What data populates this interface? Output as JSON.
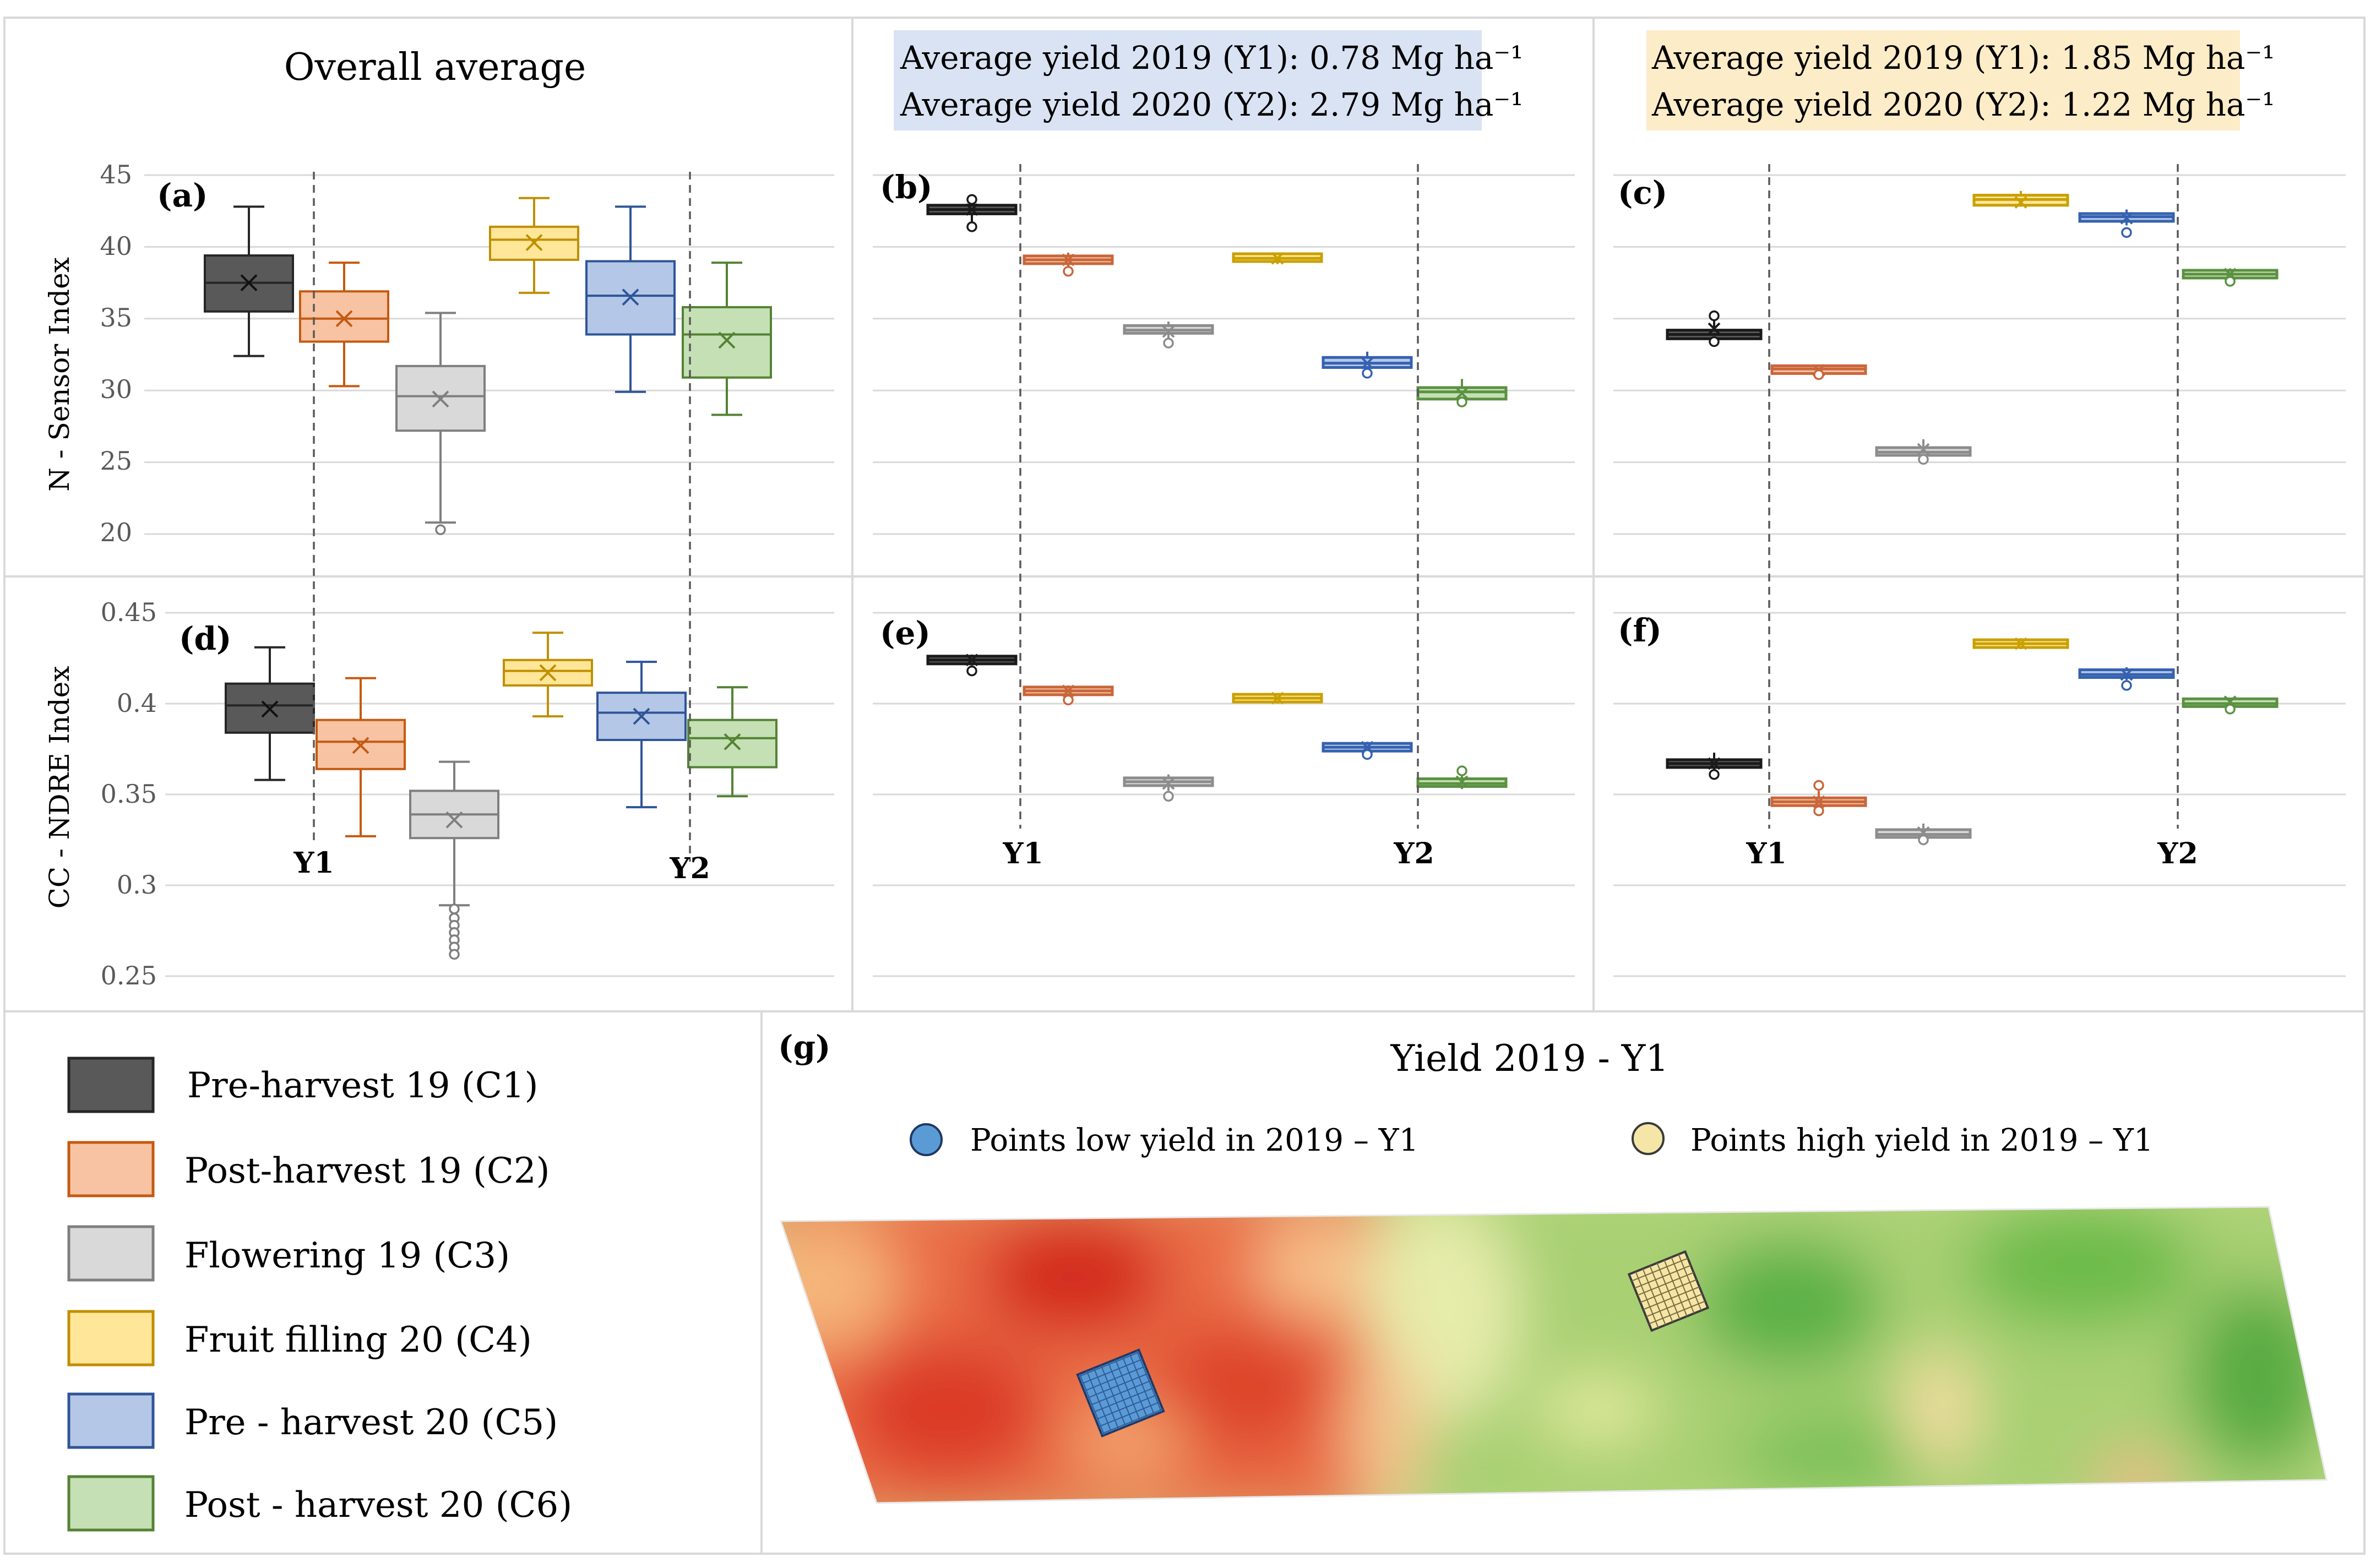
{
  "colors": {
    "C1": {
      "fill": "#595959",
      "stroke": "#262626",
      "dark": "#1a1a1a"
    },
    "C2": {
      "fill": "#f7c3a3",
      "stroke": "#c55a11",
      "dark": "#c8663a"
    },
    "C3": {
      "fill": "#d9d9d9",
      "stroke": "#7f7f7f",
      "dark": "#8c8c8c"
    },
    "C4": {
      "fill": "#ffe699",
      "stroke": "#bf8f00",
      "dark": "#c9a000"
    },
    "C5": {
      "fill": "#b4c7e7",
      "stroke": "#2f5597",
      "dark": "#3561b0"
    },
    "C6": {
      "fill": "#c5e0b4",
      "stroke": "#548235",
      "dark": "#5b9142"
    },
    "yield_box_low": "#dae3f3",
    "yield_box_high": "#fdecc8"
  },
  "top_row": {
    "overall_title": "Overall average",
    "yield_box_b": {
      "line1": "Average yield 2019 (Y1): 0.78 Mg ha⁻¹",
      "line2": "Average yield 2020 (Y2): 2.79 Mg ha⁻¹"
    },
    "yield_box_c": {
      "line1": "Average yield 2019 (Y1): 1.85 Mg ha⁻¹",
      "line2": "Average yield 2020 (Y2): 1.22 Mg ha⁻¹"
    }
  },
  "divider_labels": {
    "y1": "Y1",
    "y2": "Y2"
  },
  "chart_data": [
    {
      "panel": "(a)",
      "type": "box",
      "ylabel": "N - Sensor Index",
      "ylim": [
        20,
        45
      ],
      "yticks": [
        "45",
        "40",
        "35",
        "30",
        "25",
        "20"
      ],
      "ytick_values": [
        45,
        40,
        35,
        30,
        25,
        20
      ],
      "boxes": [
        {
          "cat": "C1",
          "min": 32.4,
          "q1": 35.5,
          "median": 37.5,
          "q3": 39.4,
          "max": 42.8,
          "mean": 37.5,
          "outliers": []
        },
        {
          "cat": "C2",
          "min": 30.3,
          "q1": 33.4,
          "median": 35.0,
          "q3": 36.9,
          "max": 38.9,
          "mean": 35.0,
          "outliers": []
        },
        {
          "cat": "C3",
          "min": 20.8,
          "q1": 27.2,
          "median": 29.6,
          "q3": 31.7,
          "max": 35.4,
          "mean": 29.4,
          "outliers": [
            20.3
          ]
        },
        {
          "cat": "C4",
          "min": 36.8,
          "q1": 39.1,
          "median": 40.5,
          "q3": 41.4,
          "max": 43.4,
          "mean": 40.3,
          "outliers": []
        },
        {
          "cat": "C5",
          "min": 29.9,
          "q1": 33.9,
          "median": 36.6,
          "q3": 39.0,
          "max": 42.8,
          "mean": 36.5,
          "outliers": []
        },
        {
          "cat": "C6",
          "min": 28.3,
          "q1": 30.9,
          "median": 33.9,
          "q3": 35.8,
          "max": 38.9,
          "mean": 33.5,
          "outliers": []
        }
      ]
    },
    {
      "panel": "(b)",
      "type": "box",
      "ylim": [
        20,
        45
      ],
      "boxes": [
        {
          "cat": "C1",
          "min": 41.5,
          "q1": 42.3,
          "median": 42.6,
          "q3": 42.9,
          "max": 43.5,
          "mean": 42.6,
          "outliers": [
            41.4,
            43.3
          ]
        },
        {
          "cat": "C2",
          "min": 38.5,
          "q1": 38.9,
          "median": 39.1,
          "q3": 39.3,
          "max": 39.6,
          "mean": 39.1,
          "outliers": [
            38.3
          ]
        },
        {
          "cat": "C3",
          "min": 33.6,
          "q1": 34.0,
          "median": 34.2,
          "q3": 34.5,
          "max": 34.8,
          "mean": 34.1,
          "outliers": [
            33.3
          ]
        },
        {
          "cat": "C4",
          "min": 38.8,
          "q1": 39.1,
          "median": 39.2,
          "q3": 39.4,
          "max": 39.6,
          "mean": 39.2,
          "outliers": []
        },
        {
          "cat": "C5",
          "min": 31.3,
          "q1": 31.6,
          "median": 31.9,
          "q3": 32.3,
          "max": 32.7,
          "mean": 31.9,
          "outliers": [
            31.2
          ]
        },
        {
          "cat": "C6",
          "min": 29.3,
          "q1": 29.4,
          "median": 29.9,
          "q3": 30.2,
          "max": 30.8,
          "mean": 29.8,
          "outliers": [
            29.2
          ]
        }
      ]
    },
    {
      "panel": "(c)",
      "type": "box",
      "ylim": [
        20,
        45
      ],
      "boxes": [
        {
          "cat": "C1",
          "min": 33.5,
          "q1": 33.6,
          "median": 33.9,
          "q3": 34.2,
          "max": 35.0,
          "mean": 34.3,
          "outliers": [
            33.4,
            35.2
          ]
        },
        {
          "cat": "C2",
          "min": 31.2,
          "q1": 31.3,
          "median": 31.5,
          "q3": 31.6,
          "max": 31.8,
          "mean": 31.4,
          "outliers": [
            31.1
          ]
        },
        {
          "cat": "C3",
          "min": 25.3,
          "q1": 25.5,
          "median": 25.7,
          "q3": 26.0,
          "max": 26.6,
          "mean": 25.9,
          "outliers": [
            25.2
          ]
        },
        {
          "cat": "C4",
          "min": 42.8,
          "q1": 42.9,
          "median": 43.3,
          "q3": 43.6,
          "max": 43.9,
          "mean": 43.1,
          "outliers": []
        },
        {
          "cat": "C5",
          "min": 41.5,
          "q1": 41.8,
          "median": 42.1,
          "q3": 42.3,
          "max": 42.6,
          "mean": 42.0,
          "outliers": [
            41.0
          ]
        },
        {
          "cat": "C6",
          "min": 37.8,
          "q1": 37.9,
          "median": 38.1,
          "q3": 38.3,
          "max": 38.5,
          "mean": 38.1,
          "outliers": [
            37.6
          ]
        }
      ]
    },
    {
      "panel": "(d)",
      "type": "box",
      "ylabel": "CC - NDRE Index",
      "ylim": [
        0.25,
        0.45
      ],
      "yticks": [
        "0.45",
        "0.4",
        "0.35",
        "0.3",
        "0.25"
      ],
      "ytick_values": [
        0.45,
        0.4,
        0.35,
        0.3,
        0.25
      ],
      "boxes": [
        {
          "cat": "C1",
          "min": 0.358,
          "q1": 0.384,
          "median": 0.399,
          "q3": 0.411,
          "max": 0.431,
          "mean": 0.397,
          "outliers": []
        },
        {
          "cat": "C2",
          "min": 0.327,
          "q1": 0.364,
          "median": 0.379,
          "q3": 0.391,
          "max": 0.414,
          "mean": 0.377,
          "outliers": []
        },
        {
          "cat": "C3",
          "min": 0.289,
          "q1": 0.326,
          "median": 0.339,
          "q3": 0.352,
          "max": 0.368,
          "mean": 0.336,
          "outliers": [
            0.287,
            0.282,
            0.278,
            0.274,
            0.27,
            0.266,
            0.262
          ]
        },
        {
          "cat": "C4",
          "min": 0.393,
          "q1": 0.41,
          "median": 0.418,
          "q3": 0.424,
          "max": 0.439,
          "mean": 0.417,
          "outliers": []
        },
        {
          "cat": "C5",
          "min": 0.343,
          "q1": 0.38,
          "median": 0.395,
          "q3": 0.406,
          "max": 0.423,
          "mean": 0.393,
          "outliers": []
        },
        {
          "cat": "C6",
          "min": 0.349,
          "q1": 0.365,
          "median": 0.381,
          "q3": 0.391,
          "max": 0.409,
          "mean": 0.379,
          "outliers": []
        }
      ]
    },
    {
      "panel": "(e)",
      "type": "box",
      "ylim": [
        0.25,
        0.45
      ],
      "boxes": [
        {
          "cat": "C1",
          "min": 0.421,
          "q1": 0.423,
          "median": 0.424,
          "q3": 0.425,
          "max": 0.427,
          "mean": 0.424,
          "outliers": [
            0.418
          ]
        },
        {
          "cat": "C2",
          "min": 0.403,
          "q1": 0.406,
          "median": 0.407,
          "q3": 0.408,
          "max": 0.41,
          "mean": 0.407,
          "outliers": [
            0.402
          ]
        },
        {
          "cat": "C3",
          "min": 0.352,
          "q1": 0.356,
          "median": 0.357,
          "q3": 0.358,
          "max": 0.361,
          "mean": 0.356,
          "outliers": [
            0.349
          ]
        },
        {
          "cat": "C4",
          "min": 0.4,
          "q1": 0.402,
          "median": 0.403,
          "q3": 0.404,
          "max": 0.405,
          "mean": 0.403,
          "outliers": []
        },
        {
          "cat": "C5",
          "min": 0.373,
          "q1": 0.375,
          "median": 0.376,
          "q3": 0.377,
          "max": 0.379,
          "mean": 0.376,
          "outliers": [
            0.372
          ]
        },
        {
          "cat": "C6",
          "min": 0.353,
          "q1": 0.355,
          "median": 0.356,
          "q3": 0.358,
          "max": 0.361,
          "mean": 0.357,
          "outliers": [
            0.363
          ]
        }
      ]
    },
    {
      "panel": "(f)",
      "type": "box",
      "ylim": [
        0.25,
        0.45
      ],
      "boxes": [
        {
          "cat": "C1",
          "min": 0.362,
          "q1": 0.365,
          "median": 0.367,
          "q3": 0.369,
          "max": 0.373,
          "mean": 0.367,
          "outliers": [
            0.361
          ]
        },
        {
          "cat": "C2",
          "min": 0.342,
          "q1": 0.344,
          "median": 0.346,
          "q3": 0.348,
          "max": 0.352,
          "mean": 0.346,
          "outliers": [
            0.341,
            0.355
          ]
        },
        {
          "cat": "C3",
          "min": 0.326,
          "q1": 0.327,
          "median": 0.328,
          "q3": 0.33,
          "max": 0.334,
          "mean": 0.329,
          "outliers": [
            0.325
          ]
        },
        {
          "cat": "C4",
          "min": 0.43,
          "q1": 0.432,
          "median": 0.433,
          "q3": 0.434,
          "max": 0.436,
          "mean": 0.433,
          "outliers": []
        },
        {
          "cat": "C5",
          "min": 0.413,
          "q1": 0.415,
          "median": 0.416,
          "q3": 0.418,
          "max": 0.42,
          "mean": 0.416,
          "outliers": [
            0.41
          ]
        },
        {
          "cat": "C6",
          "min": 0.398,
          "q1": 0.399,
          "median": 0.4,
          "q3": 0.402,
          "max": 0.403,
          "mean": 0.401,
          "outliers": [
            0.397
          ]
        }
      ]
    }
  ],
  "legend": [
    {
      "cat": "C1",
      "label": "Pre-harvest 19 (C1)"
    },
    {
      "cat": "C2",
      "label": "Post-harvest 19 (C2)"
    },
    {
      "cat": "C3",
      "label": "Flowering 19 (C3)"
    },
    {
      "cat": "C4",
      "label": "Fruit filling 20 (C4)"
    },
    {
      "cat": "C5",
      "label": "Pre - harvest 20 (C5)"
    },
    {
      "cat": "C6",
      "label": "Post - harvest 20 (C6)"
    }
  ],
  "map": {
    "panel": "(g)",
    "title": "Yield 2019 - Y1",
    "legend_low": "Points low yield in 2019 – Y1",
    "legend_high": "Points high yield in 2019 – Y1",
    "low_color": "#5b9bd5",
    "high_color": "#f5e6a8"
  }
}
